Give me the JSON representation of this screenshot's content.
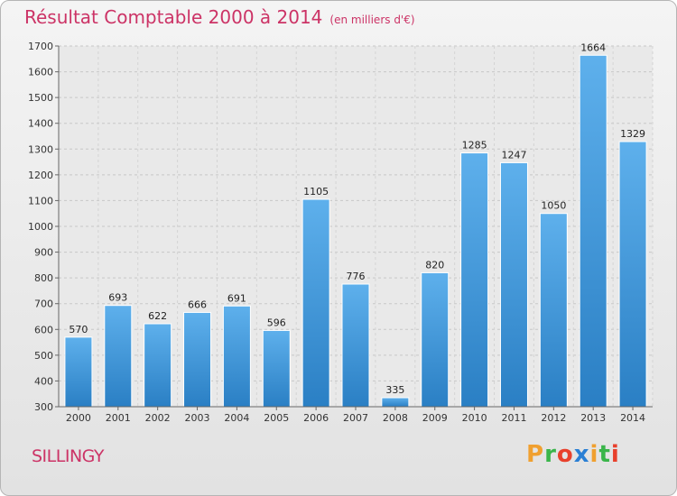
{
  "chart_data": {
    "type": "bar",
    "title": "Résultat Comptable 2000 à 2014",
    "subtitle": "(en milliers d'€)",
    "categories": [
      "2000",
      "2001",
      "2002",
      "2003",
      "2004",
      "2005",
      "2006",
      "2007",
      "2008",
      "2009",
      "2010",
      "2011",
      "2012",
      "2013",
      "2014"
    ],
    "values": [
      570,
      693,
      622,
      666,
      691,
      596,
      1105,
      776,
      335,
      820,
      1285,
      1247,
      1050,
      1664,
      1329
    ],
    "ylim": [
      300,
      1700
    ],
    "yticks": [
      300,
      400,
      500,
      600,
      700,
      800,
      900,
      1000,
      1100,
      1200,
      1300,
      1400,
      1500,
      1600,
      1700
    ],
    "grid": true,
    "bar_color": "#3a95d8",
    "title_color": "#cc3366"
  },
  "footer": {
    "place": "SILLINGY",
    "logo_letters": [
      "P",
      "r",
      "o",
      "x",
      "i",
      "t",
      "i"
    ],
    "logo_colors": [
      "#f0a030",
      "#3ab54a",
      "#e8402c",
      "#2a7fd4",
      "#f0a030",
      "#3ab54a",
      "#e8402c"
    ]
  }
}
